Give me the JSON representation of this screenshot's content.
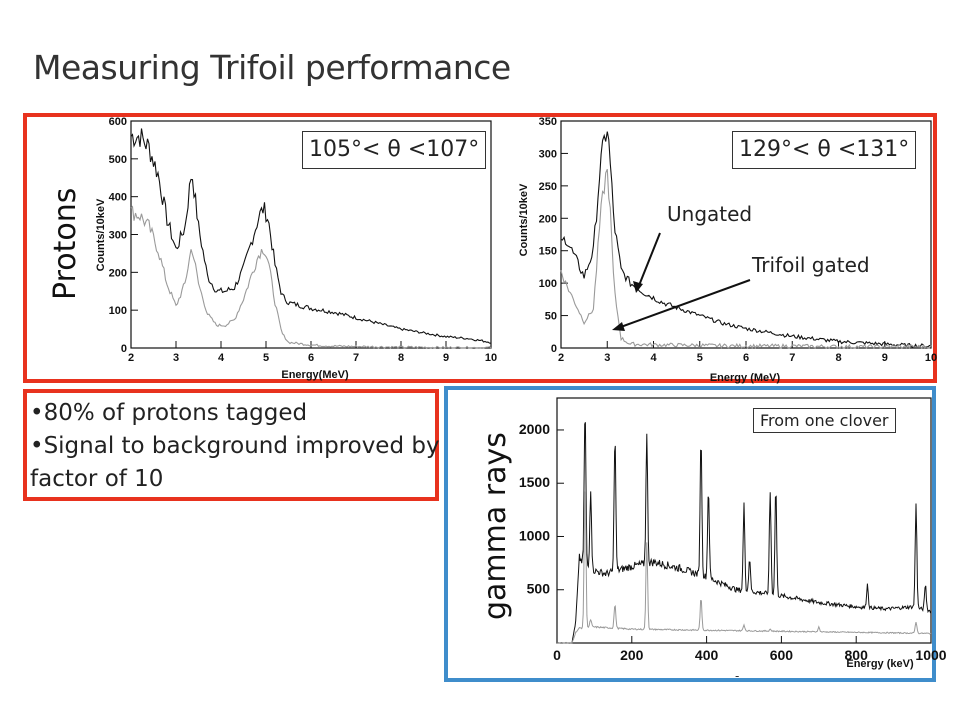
{
  "slide": {
    "title": "Measuring Trifoil performance",
    "protons_label": "Protons",
    "gamma_label": "gamma rays",
    "bullets": [
      "•80% of protons tagged",
      "•Signal to background improved by",
      "factor of 10"
    ],
    "footer_mark": "-"
  },
  "colors": {
    "red_frame": "#e8321e",
    "blue_frame": "#3f8dcb",
    "ungated": "#111111",
    "gated": "#9a9a9a"
  },
  "chart_data": [
    {
      "type": "line",
      "id": "protons-105-107",
      "condition_label": "105°< θ <107°",
      "xlabel": "Energy(MeV)",
      "ylabel": "Counts/10keV",
      "xlim": [
        2,
        10
      ],
      "ylim": [
        0,
        600
      ],
      "xticks": [
        2,
        3,
        4,
        5,
        6,
        7,
        8,
        9,
        10
      ],
      "yticks": [
        0,
        100,
        200,
        300,
        400,
        500,
        600
      ],
      "series": [
        {
          "x": [
            2.0,
            2.2,
            2.4,
            2.6,
            2.8,
            3.0,
            3.2,
            3.35,
            3.5,
            3.7,
            3.9,
            4.1,
            4.3,
            4.5,
            4.7,
            4.85,
            4.95,
            5.05,
            5.2,
            5.35,
            5.5,
            6.0,
            6.5,
            7.0,
            7.5,
            8.0,
            8.5,
            9.0,
            9.5,
            10.0
          ],
          "y": [
            560,
            560,
            530,
            460,
            340,
            260,
            320,
            470,
            320,
            190,
            150,
            150,
            160,
            210,
            290,
            350,
            370,
            340,
            220,
            140,
            120,
            105,
            95,
            80,
            65,
            50,
            40,
            30,
            25,
            15
          ]
        },
        {
          "x": [
            2.0,
            2.2,
            2.4,
            2.6,
            2.8,
            3.0,
            3.2,
            3.35,
            3.5,
            3.7,
            3.9,
            4.1,
            4.3,
            4.5,
            4.7,
            4.85,
            4.95,
            5.05,
            5.2,
            5.35,
            5.5,
            6.0,
            6.5,
            7.0,
            7.5,
            8.0,
            8.5,
            9.0,
            9.5,
            10.0
          ],
          "y": [
            360,
            350,
            320,
            260,
            170,
            110,
            170,
            270,
            170,
            90,
            60,
            60,
            75,
            130,
            200,
            250,
            265,
            230,
            120,
            40,
            15,
            8,
            5,
            4,
            3,
            2,
            2,
            1,
            1,
            1
          ]
        }
      ]
    },
    {
      "type": "line",
      "id": "protons-129-131",
      "condition_label": "129°< θ <131°",
      "xlabel": "Energy (MeV)",
      "ylabel": "Counts/10keV",
      "xlim": [
        2,
        10
      ],
      "ylim": [
        0,
        350
      ],
      "xticks": [
        2,
        3,
        4,
        5,
        6,
        7,
        8,
        9,
        10
      ],
      "yticks": [
        0,
        50,
        100,
        150,
        200,
        250,
        300,
        350
      ],
      "annotations": [
        "Ungated",
        "Trifoil gated"
      ],
      "series": [
        {
          "x": [
            2.0,
            2.1,
            2.3,
            2.5,
            2.7,
            2.85,
            2.95,
            3.0,
            3.05,
            3.15,
            3.3,
            3.5,
            3.8,
            4.2,
            4.6,
            5.0,
            5.5,
            6.0,
            6.5,
            7.0,
            7.5,
            8.0,
            8.5,
            9.0,
            9.5,
            10.0
          ],
          "y": [
            160,
            170,
            140,
            110,
            150,
            280,
            325,
            340,
            300,
            190,
            120,
            100,
            85,
            70,
            60,
            50,
            38,
            30,
            24,
            18,
            14,
            10,
            8,
            6,
            4,
            3
          ]
        },
        {
          "x": [
            2.0,
            2.1,
            2.3,
            2.5,
            2.7,
            2.85,
            2.95,
            3.0,
            3.05,
            3.15,
            3.3,
            3.5,
            4.0,
            5.0,
            6.0,
            7.0,
            8.0,
            9.0,
            10.0
          ],
          "y": [
            120,
            100,
            70,
            40,
            60,
            200,
            260,
            270,
            230,
            90,
            15,
            6,
            5,
            4,
            3,
            3,
            2,
            2,
            2
          ]
        }
      ]
    },
    {
      "type": "line",
      "id": "gamma-one-clover",
      "legend_box": "From one clover",
      "xlabel": "Energy (keV)",
      "xlim": [
        0,
        1000
      ],
      "ylim": [
        0,
        2300
      ],
      "xticks": [
        0,
        200,
        400,
        600,
        800,
        1000
      ],
      "yticks": [
        500,
        1000,
        1500,
        2000
      ],
      "series": [
        {
          "baseline": [
            [
              0,
              0
            ],
            [
              40,
              0
            ],
            [
              50,
              200
            ],
            [
              60,
              800
            ],
            [
              80,
              700
            ],
            [
              130,
              650
            ],
            [
              200,
              720
            ],
            [
              260,
              760
            ],
            [
              330,
              700
            ],
            [
              400,
              620
            ],
            [
              480,
              500
            ],
            [
              550,
              470
            ],
            [
              620,
              430
            ],
            [
              700,
              380
            ],
            [
              800,
              340
            ],
            [
              880,
              320
            ],
            [
              950,
              340
            ],
            [
              1000,
              300
            ]
          ],
          "peaks": [
            [
              75,
              2200
            ],
            [
              90,
              1450
            ],
            [
              155,
              1950
            ],
            [
              240,
              1950
            ],
            [
              385,
              1950
            ],
            [
              405,
              1450
            ],
            [
              500,
              1300
            ],
            [
              515,
              800
            ],
            [
              570,
              1420
            ],
            [
              585,
              1470
            ],
            [
              830,
              550
            ],
            [
              960,
              1300
            ],
            [
              985,
              550
            ]
          ]
        },
        {
          "baseline": [
            [
              0,
              0
            ],
            [
              40,
              0
            ],
            [
              50,
              100
            ],
            [
              60,
              140
            ],
            [
              100,
              150
            ],
            [
              200,
              130
            ],
            [
              400,
              120
            ],
            [
              600,
              110
            ],
            [
              800,
              100
            ],
            [
              1000,
              90
            ]
          ],
          "peaks": [
            [
              75,
              1550
            ],
            [
              90,
              220
            ],
            [
              155,
              360
            ],
            [
              240,
              950
            ],
            [
              385,
              420
            ],
            [
              405,
              120
            ],
            [
              500,
              170
            ],
            [
              570,
              130
            ],
            [
              700,
              150
            ],
            [
              960,
              200
            ]
          ]
        }
      ]
    }
  ]
}
